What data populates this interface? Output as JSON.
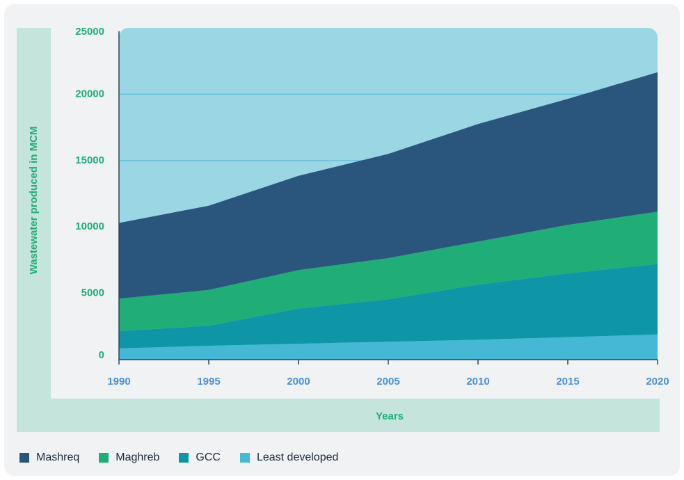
{
  "chart_data": {
    "type": "area",
    "stacked": true,
    "x": [
      1990,
      1995,
      2000,
      2005,
      2010,
      2015,
      2020
    ],
    "xlabel": "Years",
    "ylabel": "Wastewater produced in MCM",
    "ylim": [
      0,
      25000
    ],
    "yticks": [
      0,
      5000,
      10000,
      15000,
      20000,
      25000
    ],
    "ytick_labels": [
      "0",
      "5000",
      "10000",
      "15000",
      "20000",
      "25000"
    ],
    "grid": true,
    "legend_position": "bottom-left",
    "series": [
      {
        "name": "Least developed",
        "color": "#45b8d6",
        "values": [
          850,
          1050,
          1200,
          1350,
          1500,
          1700,
          1900
        ]
      },
      {
        "name": "GCC",
        "color": "#0f96a6",
        "values": [
          1300,
          1500,
          2650,
          3200,
          4150,
          4800,
          5300
        ]
      },
      {
        "name": "Maghreb",
        "color": "#20ad78",
        "values": [
          2450,
          2700,
          2900,
          3100,
          3250,
          3650,
          3950
        ]
      },
      {
        "name": "Mashreq",
        "color": "#2a557c",
        "values": [
          5700,
          6350,
          7100,
          7850,
          8850,
          9500,
          10500
        ]
      }
    ],
    "legend_order": [
      "Mashreq",
      "Maghreb",
      "GCC",
      "Least developed"
    ],
    "plot_background": "#9ad6e3"
  }
}
